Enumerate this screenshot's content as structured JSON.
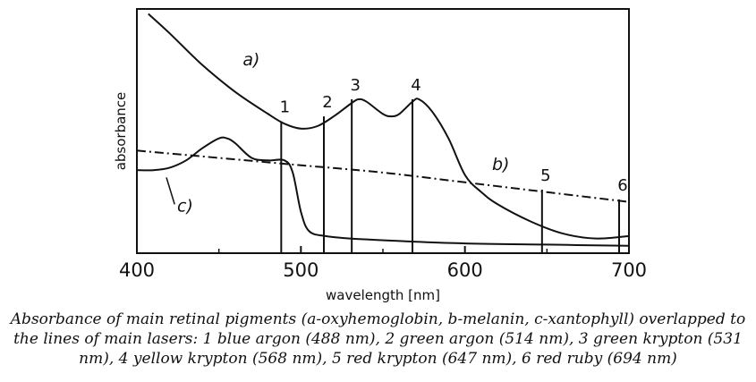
{
  "caption": "Absorbance of main retinal pigments (a-oxyhemoglobin, b-melanin, c-xantophyll) overlapped to the lines of main lasers: 1 blue argon (488 nm), 2 green argon (514 nm), 3 green krypton (531 nm), 4 yellow krypton (568 nm), 5 red krypton (647 nm), 6 red ruby (694 nm)",
  "chart_data": {
    "type": "line",
    "xlabel": "wavelength [nm]",
    "ylabel": "absorbance",
    "xlim": [
      400,
      700
    ],
    "ylim": [
      0,
      1
    ],
    "x_ticks": [
      400,
      500,
      600,
      700
    ],
    "grid": false,
    "y_tick_labels": false,
    "series": [
      {
        "name": "a)",
        "style": "solid",
        "points": [
          [
            407,
            0.98
          ],
          [
            420,
            0.9
          ],
          [
            440,
            0.77
          ],
          [
            460,
            0.66
          ],
          [
            480,
            0.57
          ],
          [
            490,
            0.53
          ],
          [
            500,
            0.51
          ],
          [
            510,
            0.52
          ],
          [
            520,
            0.56
          ],
          [
            530,
            0.61
          ],
          [
            535,
            0.63
          ],
          [
            540,
            0.62
          ],
          [
            550,
            0.57
          ],
          [
            555,
            0.56
          ],
          [
            560,
            0.57
          ],
          [
            568,
            0.62
          ],
          [
            572,
            0.63
          ],
          [
            580,
            0.58
          ],
          [
            590,
            0.47
          ],
          [
            600,
            0.32
          ],
          [
            610,
            0.25
          ],
          [
            620,
            0.2
          ],
          [
            640,
            0.13
          ],
          [
            660,
            0.08
          ],
          [
            680,
            0.06
          ],
          [
            700,
            0.07
          ]
        ]
      },
      {
        "name": "b)",
        "style": "dash-dot",
        "points": [
          [
            400,
            0.42
          ],
          [
            450,
            0.39
          ],
          [
            500,
            0.36
          ],
          [
            550,
            0.33
          ],
          [
            600,
            0.29
          ],
          [
            650,
            0.25
          ],
          [
            700,
            0.21
          ]
        ]
      },
      {
        "name": "c)",
        "style": "solid",
        "points": [
          [
            400,
            0.34
          ],
          [
            410,
            0.34
          ],
          [
            420,
            0.35
          ],
          [
            430,
            0.38
          ],
          [
            440,
            0.43
          ],
          [
            450,
            0.47
          ],
          [
            455,
            0.47
          ],
          [
            460,
            0.45
          ],
          [
            470,
            0.39
          ],
          [
            480,
            0.38
          ],
          [
            490,
            0.38
          ],
          [
            495,
            0.33
          ],
          [
            500,
            0.17
          ],
          [
            505,
            0.09
          ],
          [
            515,
            0.07
          ],
          [
            530,
            0.06
          ],
          [
            560,
            0.05
          ],
          [
            600,
            0.04
          ],
          [
            650,
            0.035
          ],
          [
            700,
            0.03
          ]
        ]
      }
    ],
    "laser_lines": [
      {
        "label": "1",
        "x": 488,
        "top": 0.54
      },
      {
        "label": "2",
        "x": 514,
        "top": 0.56
      },
      {
        "label": "3",
        "x": 531,
        "top": 0.63
      },
      {
        "label": "4",
        "x": 568,
        "top": 0.63
      },
      {
        "label": "5",
        "x": 647,
        "top": 0.26
      },
      {
        "label": "6",
        "x": 694,
        "top": 0.22
      }
    ]
  }
}
